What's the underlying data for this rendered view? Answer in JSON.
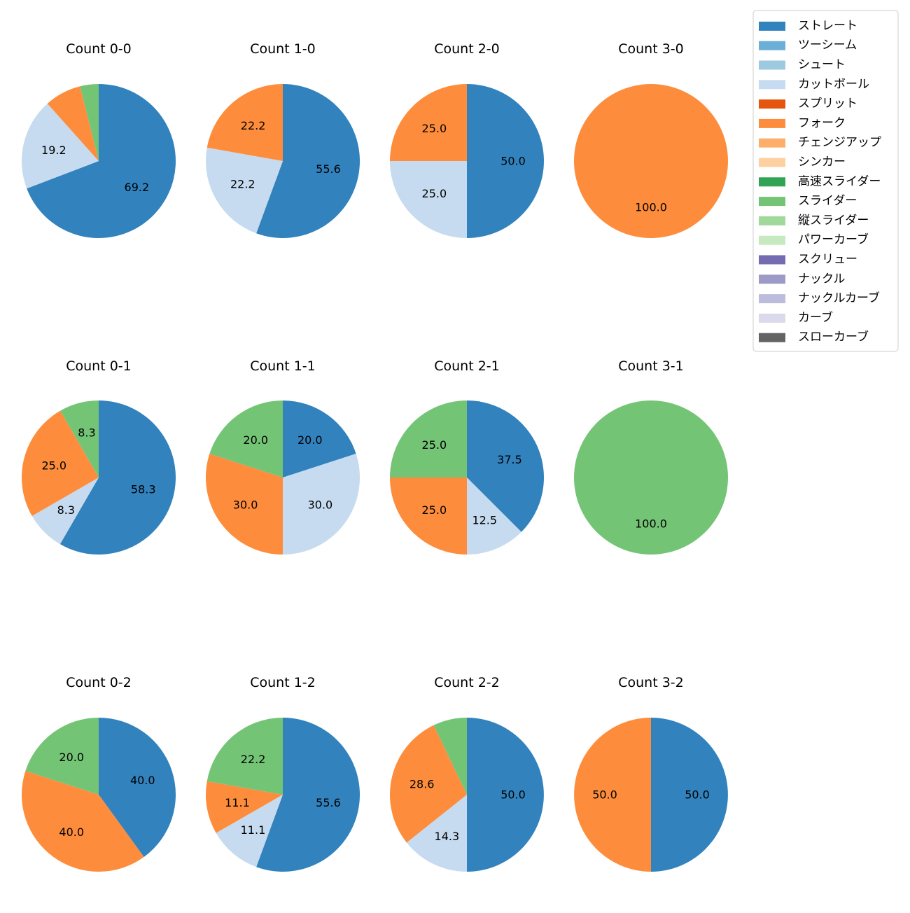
{
  "chart_data": {
    "type": "pie",
    "start_angle_deg": 90,
    "direction": "clockwise",
    "autopct_format": "%.1f",
    "categories": [
      {
        "name": "ストレート",
        "color": "#3182bd"
      },
      {
        "name": "ツーシーム",
        "color": "#6baed6"
      },
      {
        "name": "シュート",
        "color": "#9ecae1"
      },
      {
        "name": "カットボール",
        "color": "#c6dbef"
      },
      {
        "name": "スプリット",
        "color": "#e6550d"
      },
      {
        "name": "フォーク",
        "color": "#fd8d3c"
      },
      {
        "name": "チェンジアップ",
        "color": "#fdae6b"
      },
      {
        "name": "シンカー",
        "color": "#fdd0a2"
      },
      {
        "name": "高速スライダー",
        "color": "#31a354"
      },
      {
        "name": "スライダー",
        "color": "#74c476"
      },
      {
        "name": "縦スライダー",
        "color": "#a1d99b"
      },
      {
        "name": "パワーカーブ",
        "color": "#c7e9c0"
      },
      {
        "name": "スクリュー",
        "color": "#756bb1"
      },
      {
        "name": "ナックル",
        "color": "#9e9ac8"
      },
      {
        "name": "ナックルカーブ",
        "color": "#bcbddc"
      },
      {
        "name": "カーブ",
        "color": "#dadaeb"
      },
      {
        "name": "スローカーブ",
        "color": "#636363"
      }
    ],
    "legend_position": "top-right",
    "pies": [
      {
        "title": "Count 0-0",
        "slices": [
          {
            "category": "ストレート",
            "value": 69.2,
            "label": "69.2"
          },
          {
            "category": "カットボール",
            "value": 19.2,
            "label": "19.2"
          },
          {
            "category": "フォーク",
            "value": 7.7,
            "label": ""
          },
          {
            "category": "スライダー",
            "value": 3.9,
            "label": ""
          }
        ]
      },
      {
        "title": "Count 1-0",
        "slices": [
          {
            "category": "ストレート",
            "value": 55.6,
            "label": "55.6"
          },
          {
            "category": "カットボール",
            "value": 22.2,
            "label": "22.2"
          },
          {
            "category": "フォーク",
            "value": 22.2,
            "label": "22.2"
          }
        ]
      },
      {
        "title": "Count 2-0",
        "slices": [
          {
            "category": "ストレート",
            "value": 50.0,
            "label": "50.0"
          },
          {
            "category": "カットボール",
            "value": 25.0,
            "label": "25.0"
          },
          {
            "category": "フォーク",
            "value": 25.0,
            "label": "25.0"
          }
        ]
      },
      {
        "title": "Count 3-0",
        "slices": [
          {
            "category": "フォーク",
            "value": 100.0,
            "label": "100.0"
          }
        ]
      },
      {
        "title": "Count 0-1",
        "slices": [
          {
            "category": "ストレート",
            "value": 58.3,
            "label": "58.3"
          },
          {
            "category": "カットボール",
            "value": 8.3,
            "label": "8.3"
          },
          {
            "category": "フォーク",
            "value": 25.0,
            "label": "25.0"
          },
          {
            "category": "スライダー",
            "value": 8.3,
            "label": "8.3"
          }
        ]
      },
      {
        "title": "Count 1-1",
        "slices": [
          {
            "category": "ストレート",
            "value": 20.0,
            "label": "20.0"
          },
          {
            "category": "カットボール",
            "value": 30.0,
            "label": "30.0"
          },
          {
            "category": "フォーク",
            "value": 30.0,
            "label": "30.0"
          },
          {
            "category": "スライダー",
            "value": 20.0,
            "label": "20.0"
          }
        ]
      },
      {
        "title": "Count 2-1",
        "slices": [
          {
            "category": "ストレート",
            "value": 37.5,
            "label": "37.5"
          },
          {
            "category": "カットボール",
            "value": 12.5,
            "label": "12.5"
          },
          {
            "category": "フォーク",
            "value": 25.0,
            "label": "25.0"
          },
          {
            "category": "スライダー",
            "value": 25.0,
            "label": "25.0"
          }
        ]
      },
      {
        "title": "Count 3-1",
        "slices": [
          {
            "category": "スライダー",
            "value": 100.0,
            "label": "100.0"
          }
        ]
      },
      {
        "title": "Count 0-2",
        "slices": [
          {
            "category": "ストレート",
            "value": 40.0,
            "label": "40.0"
          },
          {
            "category": "フォーク",
            "value": 40.0,
            "label": "40.0"
          },
          {
            "category": "スライダー",
            "value": 20.0,
            "label": "20.0"
          }
        ]
      },
      {
        "title": "Count 1-2",
        "slices": [
          {
            "category": "ストレート",
            "value": 55.6,
            "label": "55.6"
          },
          {
            "category": "カットボール",
            "value": 11.1,
            "label": "11.1"
          },
          {
            "category": "フォーク",
            "value": 11.1,
            "label": "11.1"
          },
          {
            "category": "スライダー",
            "value": 22.2,
            "label": "22.2"
          }
        ]
      },
      {
        "title": "Count 2-2",
        "slices": [
          {
            "category": "ストレート",
            "value": 50.0,
            "label": "50.0"
          },
          {
            "category": "カットボール",
            "value": 14.3,
            "label": "14.3"
          },
          {
            "category": "フォーク",
            "value": 28.6,
            "label": "28.6"
          },
          {
            "category": "スライダー",
            "value": 7.1,
            "label": ""
          }
        ]
      },
      {
        "title": "Count 3-2",
        "slices": [
          {
            "category": "ストレート",
            "value": 50.0,
            "label": "50.0"
          },
          {
            "category": "フォーク",
            "value": 50.0,
            "label": "50.0"
          }
        ]
      }
    ]
  }
}
